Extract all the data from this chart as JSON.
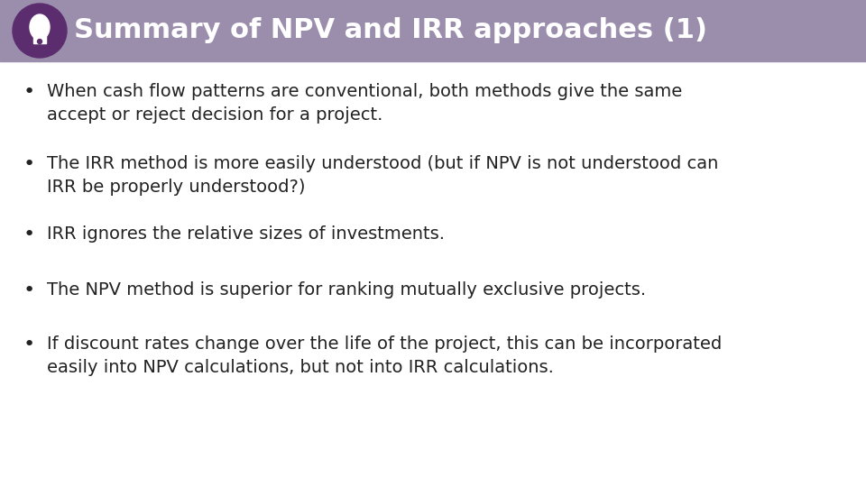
{
  "title": "Summary of NPV and IRR approaches (1)",
  "title_bg_color": "#9B8EAD",
  "title_text_color": "#FFFFFF",
  "title_fontsize": 22,
  "icon_bg_color": "#5C2D6E",
  "icon_ellipse_color": "#FFFFFF",
  "background_color": "#FFFFFF",
  "bullet_color": "#222222",
  "bullet_fontsize": 14,
  "bullets": [
    "When cash flow patterns are conventional, both methods give the same\naccept or reject decision for a project.",
    "The IRR method is more easily understood (but if NPV is not understood can\nIRR be properly understood?)",
    "IRR ignores the relative sizes of investments.",
    "The NPV method is superior for ranking mutually exclusive projects.",
    "If discount rates change over the life of the project, this can be incorporated\neasily into NPV calculations, but not into IRR calculations."
  ]
}
